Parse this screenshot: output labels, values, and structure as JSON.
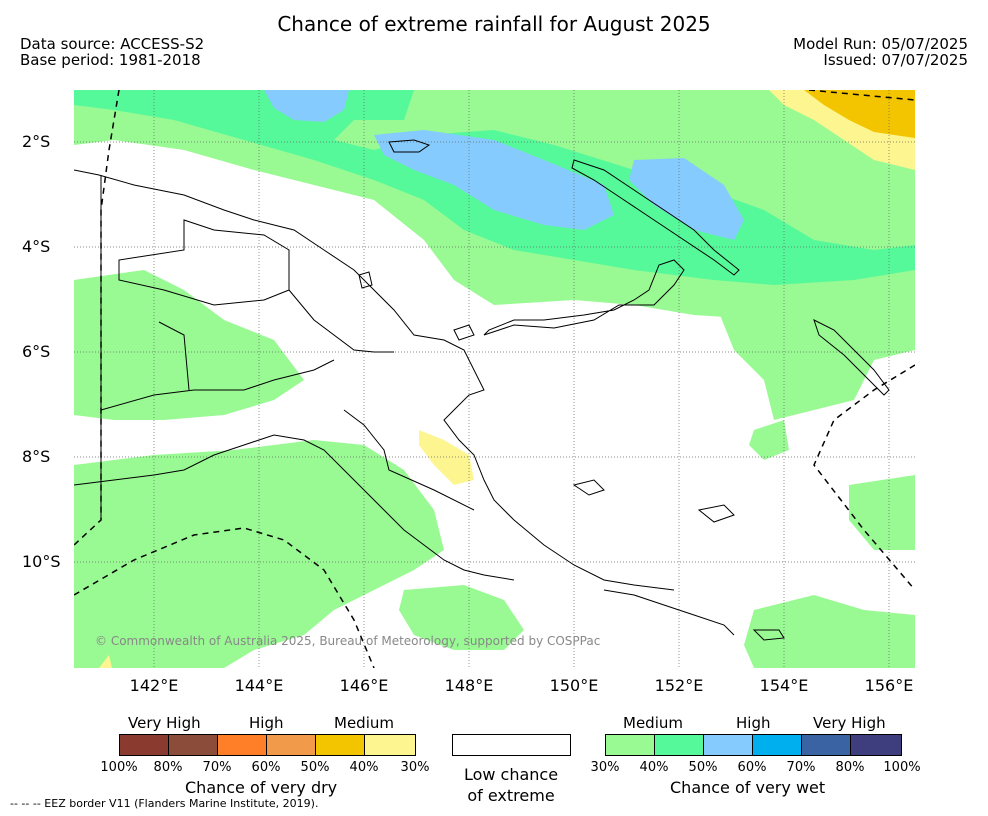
{
  "header": {
    "title": "Chance of extreme rainfall for August 2025",
    "data_source": "Data source: ACCESS-S2",
    "base_period": "Base period: 1981-2018",
    "model_run": "Model Run: 05/07/2025",
    "issued": "Issued: 07/07/2025"
  },
  "map": {
    "lat_labels": [
      "2°S",
      "4°S",
      "6°S",
      "8°S",
      "10°S"
    ],
    "lon_labels": [
      "142°E",
      "144°E",
      "146°E",
      "148°E",
      "150°E",
      "152°E",
      "154°E",
      "156°E"
    ],
    "copyright": "© Commonwealth of Australia 2025, Bureau of Meteorology, supported by COSPPac",
    "colors": {
      "wet_medium": "#99f993",
      "wet_high": "#56f99a",
      "wet_high2": "#86cbfd",
      "dry_medium": "#fdf58f",
      "dry_high": "#f2c500",
      "land_line": "#000000"
    }
  },
  "legend": {
    "dry": {
      "headers": [
        "Very High",
        "High",
        "Medium"
      ],
      "colors": [
        "#8b3a2f",
        "#8b4c3a",
        "#fe7f27",
        "#f09a4a",
        "#f2c500",
        "#fdf58f"
      ],
      "ticks": [
        "100%",
        "80%",
        "70%",
        "60%",
        "50%",
        "40%",
        "30%"
      ],
      "title": "Chance of very dry"
    },
    "low": {
      "line1": "Low chance",
      "line2": "of extreme"
    },
    "wet": {
      "headers": [
        "Medium",
        "High",
        "Very High"
      ],
      "colors": [
        "#99f993",
        "#56f99a",
        "#86cbfd",
        "#00afee",
        "#3a63a3",
        "#3e3e7e"
      ],
      "ticks": [
        "30%",
        "40%",
        "50%",
        "60%",
        "70%",
        "80%",
        "100%"
      ],
      "title": "Chance of very wet"
    },
    "eez_note": "--  --  -- EEZ border V11 (Flanders Marine Institute, 2019)."
  }
}
